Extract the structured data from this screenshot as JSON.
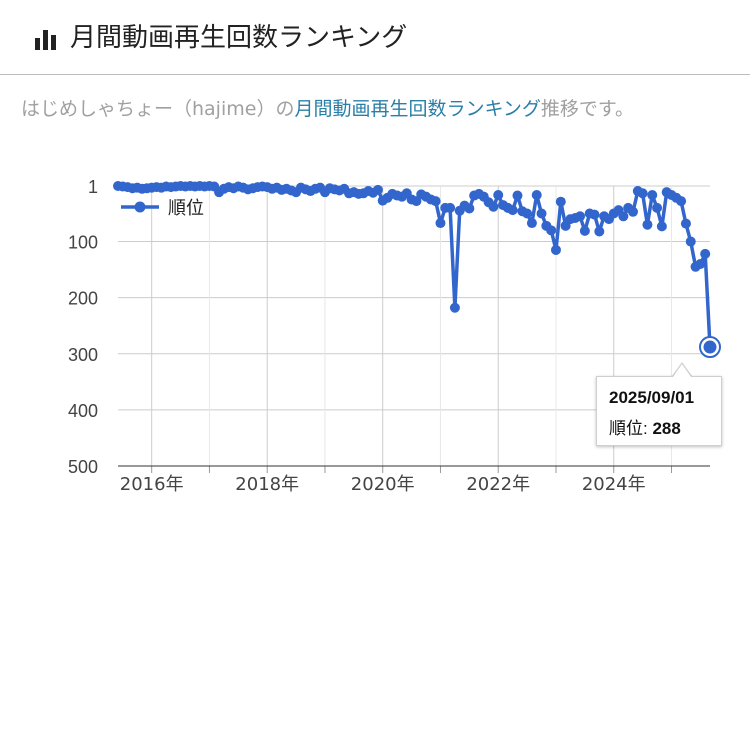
{
  "header": {
    "title": "月間動画再生回数ランキング",
    "icon": "bar-chart-icon"
  },
  "description": {
    "prefix": "はじめしゃちょー（hajime）の",
    "link": "月間動画再生回数ランキング",
    "suffix": "推移です。"
  },
  "tooltip": {
    "date": "2025/09/01",
    "label": "順位: ",
    "value": "288"
  },
  "chart_data": {
    "type": "line",
    "ylim": [
      1,
      500
    ],
    "y_reversed": true,
    "yticks": [
      "1",
      "100",
      "200",
      "300",
      "400",
      "500"
    ],
    "xticks": [
      "2016年",
      "2018年",
      "2020年",
      "2022年",
      "2024年"
    ],
    "grid": true,
    "legend": "top-left",
    "series": [
      {
        "name": "順位",
        "color": "#3366cc",
        "points": [
          [
            "2015-06",
            1
          ],
          [
            "2015-07",
            2
          ],
          [
            "2015-08",
            3
          ],
          [
            "2015-09",
            5
          ],
          [
            "2015-10",
            4
          ],
          [
            "2015-11",
            6
          ],
          [
            "2015-12",
            5
          ],
          [
            "2016-01",
            4
          ],
          [
            "2016-02",
            3
          ],
          [
            "2016-03",
            4
          ],
          [
            "2016-04",
            2
          ],
          [
            "2016-05",
            3
          ],
          [
            "2016-06",
            2
          ],
          [
            "2016-07",
            1
          ],
          [
            "2016-08",
            2
          ],
          [
            "2016-09",
            1
          ],
          [
            "2016-10",
            2
          ],
          [
            "2016-11",
            1
          ],
          [
            "2016-12",
            2
          ],
          [
            "2017-01",
            1
          ],
          [
            "2017-02",
            2
          ],
          [
            "2017-03",
            12
          ],
          [
            "2017-04",
            6
          ],
          [
            "2017-05",
            3
          ],
          [
            "2017-06",
            5
          ],
          [
            "2017-07",
            2
          ],
          [
            "2017-08",
            4
          ],
          [
            "2017-09",
            7
          ],
          [
            "2017-10",
            5
          ],
          [
            "2017-11",
            3
          ],
          [
            "2017-12",
            2
          ],
          [
            "2018-01",
            3
          ],
          [
            "2018-02",
            6
          ],
          [
            "2018-03",
            4
          ],
          [
            "2018-04",
            8
          ],
          [
            "2018-05",
            6
          ],
          [
            "2018-06",
            9
          ],
          [
            "2018-07",
            12
          ],
          [
            "2018-08",
            4
          ],
          [
            "2018-09",
            7
          ],
          [
            "2018-10",
            10
          ],
          [
            "2018-11",
            6
          ],
          [
            "2018-12",
            4
          ],
          [
            "2019-01",
            12
          ],
          [
            "2019-02",
            5
          ],
          [
            "2019-03",
            7
          ],
          [
            "2019-04",
            9
          ],
          [
            "2019-05",
            6
          ],
          [
            "2019-06",
            14
          ],
          [
            "2019-07",
            12
          ],
          [
            "2019-08",
            15
          ],
          [
            "2019-09",
            14
          ],
          [
            "2019-10",
            10
          ],
          [
            "2019-11",
            13
          ],
          [
            "2019-12",
            8
          ],
          [
            "2020-01",
            27
          ],
          [
            "2020-02",
            22
          ],
          [
            "2020-03",
            15
          ],
          [
            "2020-04",
            18
          ],
          [
            "2020-05",
            20
          ],
          [
            "2020-06",
            14
          ],
          [
            "2020-07",
            25
          ],
          [
            "2020-08",
            28
          ],
          [
            "2020-09",
            16
          ],
          [
            "2020-10",
            20
          ],
          [
            "2020-11",
            25
          ],
          [
            "2020-12",
            28
          ],
          [
            "2021-01",
            67
          ],
          [
            "2021-02",
            40
          ],
          [
            "2021-03",
            40
          ],
          [
            "2021-04",
            218
          ],
          [
            "2021-05",
            45
          ],
          [
            "2021-06",
            36
          ],
          [
            "2021-07",
            41
          ],
          [
            "2021-08",
            18
          ],
          [
            "2021-09",
            15
          ],
          [
            "2021-10",
            20
          ],
          [
            "2021-11",
            30
          ],
          [
            "2021-12",
            38
          ],
          [
            "2022-01",
            17
          ],
          [
            "2022-02",
            35
          ],
          [
            "2022-03",
            40
          ],
          [
            "2022-04",
            44
          ],
          [
            "2022-05",
            18
          ],
          [
            "2022-06",
            46
          ],
          [
            "2022-07",
            50
          ],
          [
            "2022-08",
            67
          ],
          [
            "2022-09",
            17
          ],
          [
            "2022-10",
            50
          ],
          [
            "2022-11",
            72
          ],
          [
            "2022-12",
            80
          ],
          [
            "2023-01",
            115
          ],
          [
            "2023-02",
            29
          ],
          [
            "2023-03",
            72
          ],
          [
            "2023-04",
            60
          ],
          [
            "2023-05",
            58
          ],
          [
            "2023-06",
            55
          ],
          [
            "2023-07",
            81
          ],
          [
            "2023-08",
            50
          ],
          [
            "2023-09",
            52
          ],
          [
            "2023-10",
            82
          ],
          [
            "2023-11",
            55
          ],
          [
            "2023-12",
            60
          ],
          [
            "2024-01",
            50
          ],
          [
            "2024-02",
            44
          ],
          [
            "2024-03",
            55
          ],
          [
            "2024-04",
            40
          ],
          [
            "2024-05",
            47
          ],
          [
            "2024-06",
            10
          ],
          [
            "2024-07",
            14
          ],
          [
            "2024-08",
            70
          ],
          [
            "2024-09",
            17
          ],
          [
            "2024-10",
            40
          ],
          [
            "2024-11",
            73
          ],
          [
            "2024-12",
            12
          ],
          [
            "2025-01",
            17
          ],
          [
            "2025-02",
            22
          ],
          [
            "2025-03",
            28
          ],
          [
            "2025-04",
            68
          ],
          [
            "2025-05",
            100
          ],
          [
            "2025-06",
            145
          ],
          [
            "2025-07",
            140
          ],
          [
            "2025-08",
            122
          ],
          [
            "2025-09",
            288
          ]
        ]
      }
    ]
  }
}
